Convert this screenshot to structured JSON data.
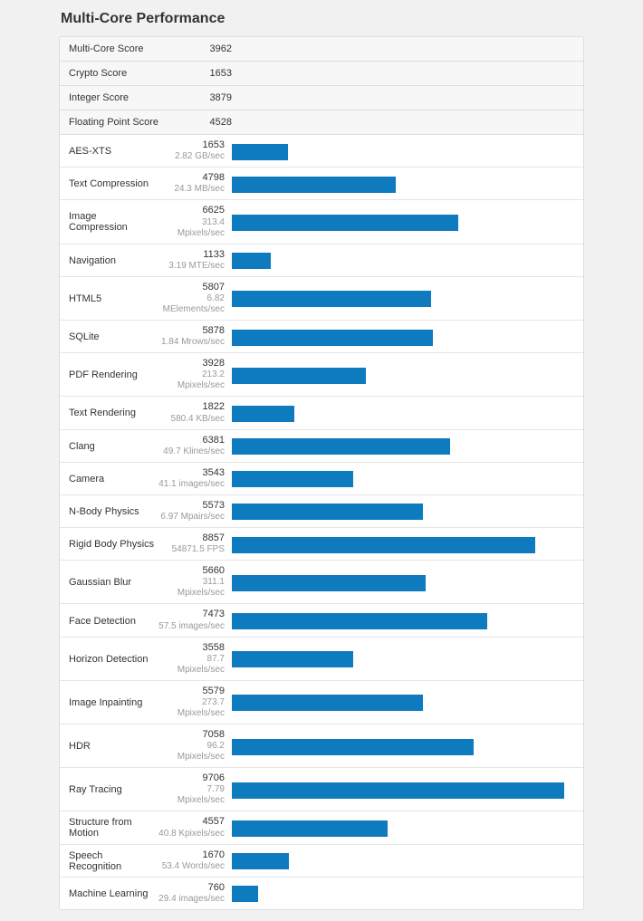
{
  "title": "Multi-Core Performance",
  "colors": {
    "bar": "#0f7bbf",
    "page_bg": "#f1f1f1",
    "panel_border": "#dddddd",
    "row_border": "#e5e5e5",
    "summary_bg": "#f7f7f7",
    "text": "#333333",
    "detail_text": "#999999"
  },
  "bar_max": 10000,
  "summary": [
    {
      "label": "Multi-Core Score",
      "value": "3962"
    },
    {
      "label": "Crypto Score",
      "value": "1653"
    },
    {
      "label": "Integer Score",
      "value": "3879"
    },
    {
      "label": "Floating Point Score",
      "value": "4528"
    }
  ],
  "tests": [
    {
      "label": "AES-XTS",
      "score": 1653,
      "detail": "2.82 GB/sec"
    },
    {
      "label": "Text Compression",
      "score": 4798,
      "detail": "24.3 MB/sec"
    },
    {
      "label": "Image Compression",
      "score": 6625,
      "detail": "313.4 Mpixels/sec"
    },
    {
      "label": "Navigation",
      "score": 1133,
      "detail": "3.19 MTE/sec"
    },
    {
      "label": "HTML5",
      "score": 5807,
      "detail": "6.82 MElements/sec"
    },
    {
      "label": "SQLite",
      "score": 5878,
      "detail": "1.84 Mrows/sec"
    },
    {
      "label": "PDF Rendering",
      "score": 3928,
      "detail": "213.2 Mpixels/sec"
    },
    {
      "label": "Text Rendering",
      "score": 1822,
      "detail": "580.4 KB/sec"
    },
    {
      "label": "Clang",
      "score": 6381,
      "detail": "49.7 Klines/sec"
    },
    {
      "label": "Camera",
      "score": 3543,
      "detail": "41.1 images/sec"
    },
    {
      "label": "N-Body Physics",
      "score": 5573,
      "detail": "6.97 Mpairs/sec"
    },
    {
      "label": "Rigid Body Physics",
      "score": 8857,
      "detail": "54871.5 FPS"
    },
    {
      "label": "Gaussian Blur",
      "score": 5660,
      "detail": "311.1 Mpixels/sec"
    },
    {
      "label": "Face Detection",
      "score": 7473,
      "detail": "57.5 images/sec"
    },
    {
      "label": "Horizon Detection",
      "score": 3558,
      "detail": "87.7 Mpixels/sec"
    },
    {
      "label": "Image Inpainting",
      "score": 5579,
      "detail": "273.7 Mpixels/sec"
    },
    {
      "label": "HDR",
      "score": 7058,
      "detail": "96.2 Mpixels/sec"
    },
    {
      "label": "Ray Tracing",
      "score": 9706,
      "detail": "7.79 Mpixels/sec"
    },
    {
      "label": "Structure from Motion",
      "score": 4557,
      "detail": "40.8 Kpixels/sec"
    },
    {
      "label": "Speech Recognition",
      "score": 1670,
      "detail": "53.4 Words/sec"
    },
    {
      "label": "Machine Learning",
      "score": 760,
      "detail": "29.4 images/sec"
    }
  ]
}
